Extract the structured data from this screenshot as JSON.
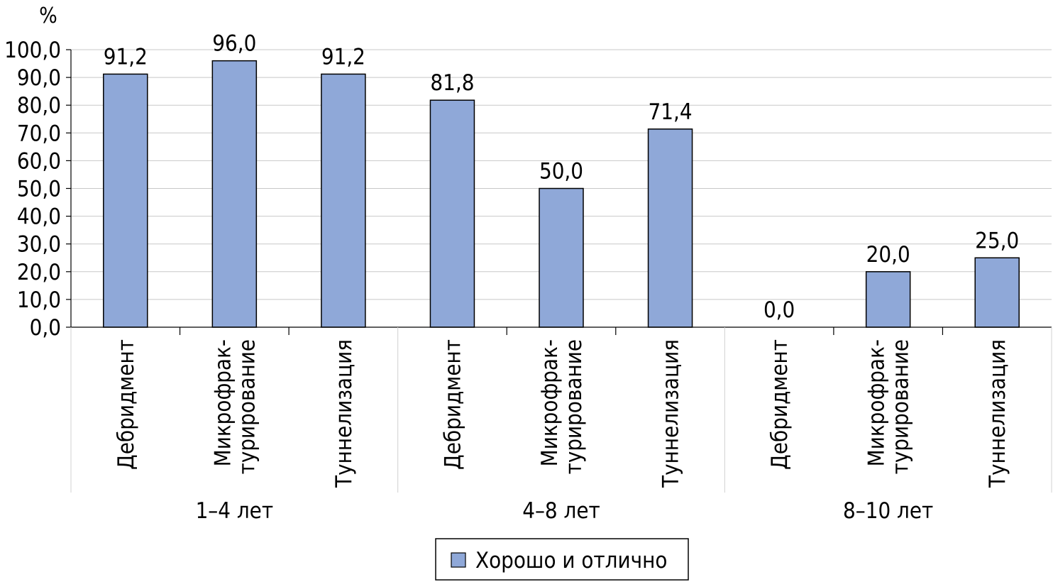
{
  "chart_data": {
    "type": "bar",
    "ylabel": "%",
    "ylim": [
      0,
      100
    ],
    "y_ticks": [
      "0,0",
      "10,0",
      "20,0",
      "30,0",
      "40,0",
      "50,0",
      "60,0",
      "70,0",
      "80,0",
      "90,0",
      "100,0"
    ],
    "grid": true,
    "legend_position": "bottom",
    "groups": [
      "1–4 лет",
      "4–8 лет",
      "8–10 лет"
    ],
    "categories": [
      [
        "Дебридмент"
      ],
      [
        "Микрофрак-",
        "турирование"
      ],
      [
        "Туннелизация"
      ],
      [
        "Дебридмент"
      ],
      [
        "Микрофрак-",
        "турирование"
      ],
      [
        "Туннелизация"
      ],
      [
        "Дебридмент"
      ],
      [
        "Микрофрак-",
        "турирование"
      ],
      [
        "Туннелизация"
      ]
    ],
    "series": [
      {
        "name": "Хорошо и отлично",
        "color": "#8FA8D8",
        "values": [
          91.2,
          96.0,
          91.2,
          81.8,
          50.0,
          71.4,
          0.0,
          20.0,
          25.0
        ],
        "labels": [
          "91,2",
          "96,0",
          "91,2",
          "81,8",
          "50,0",
          "71,4",
          "0,0",
          "20,0",
          "25,0"
        ]
      }
    ]
  }
}
